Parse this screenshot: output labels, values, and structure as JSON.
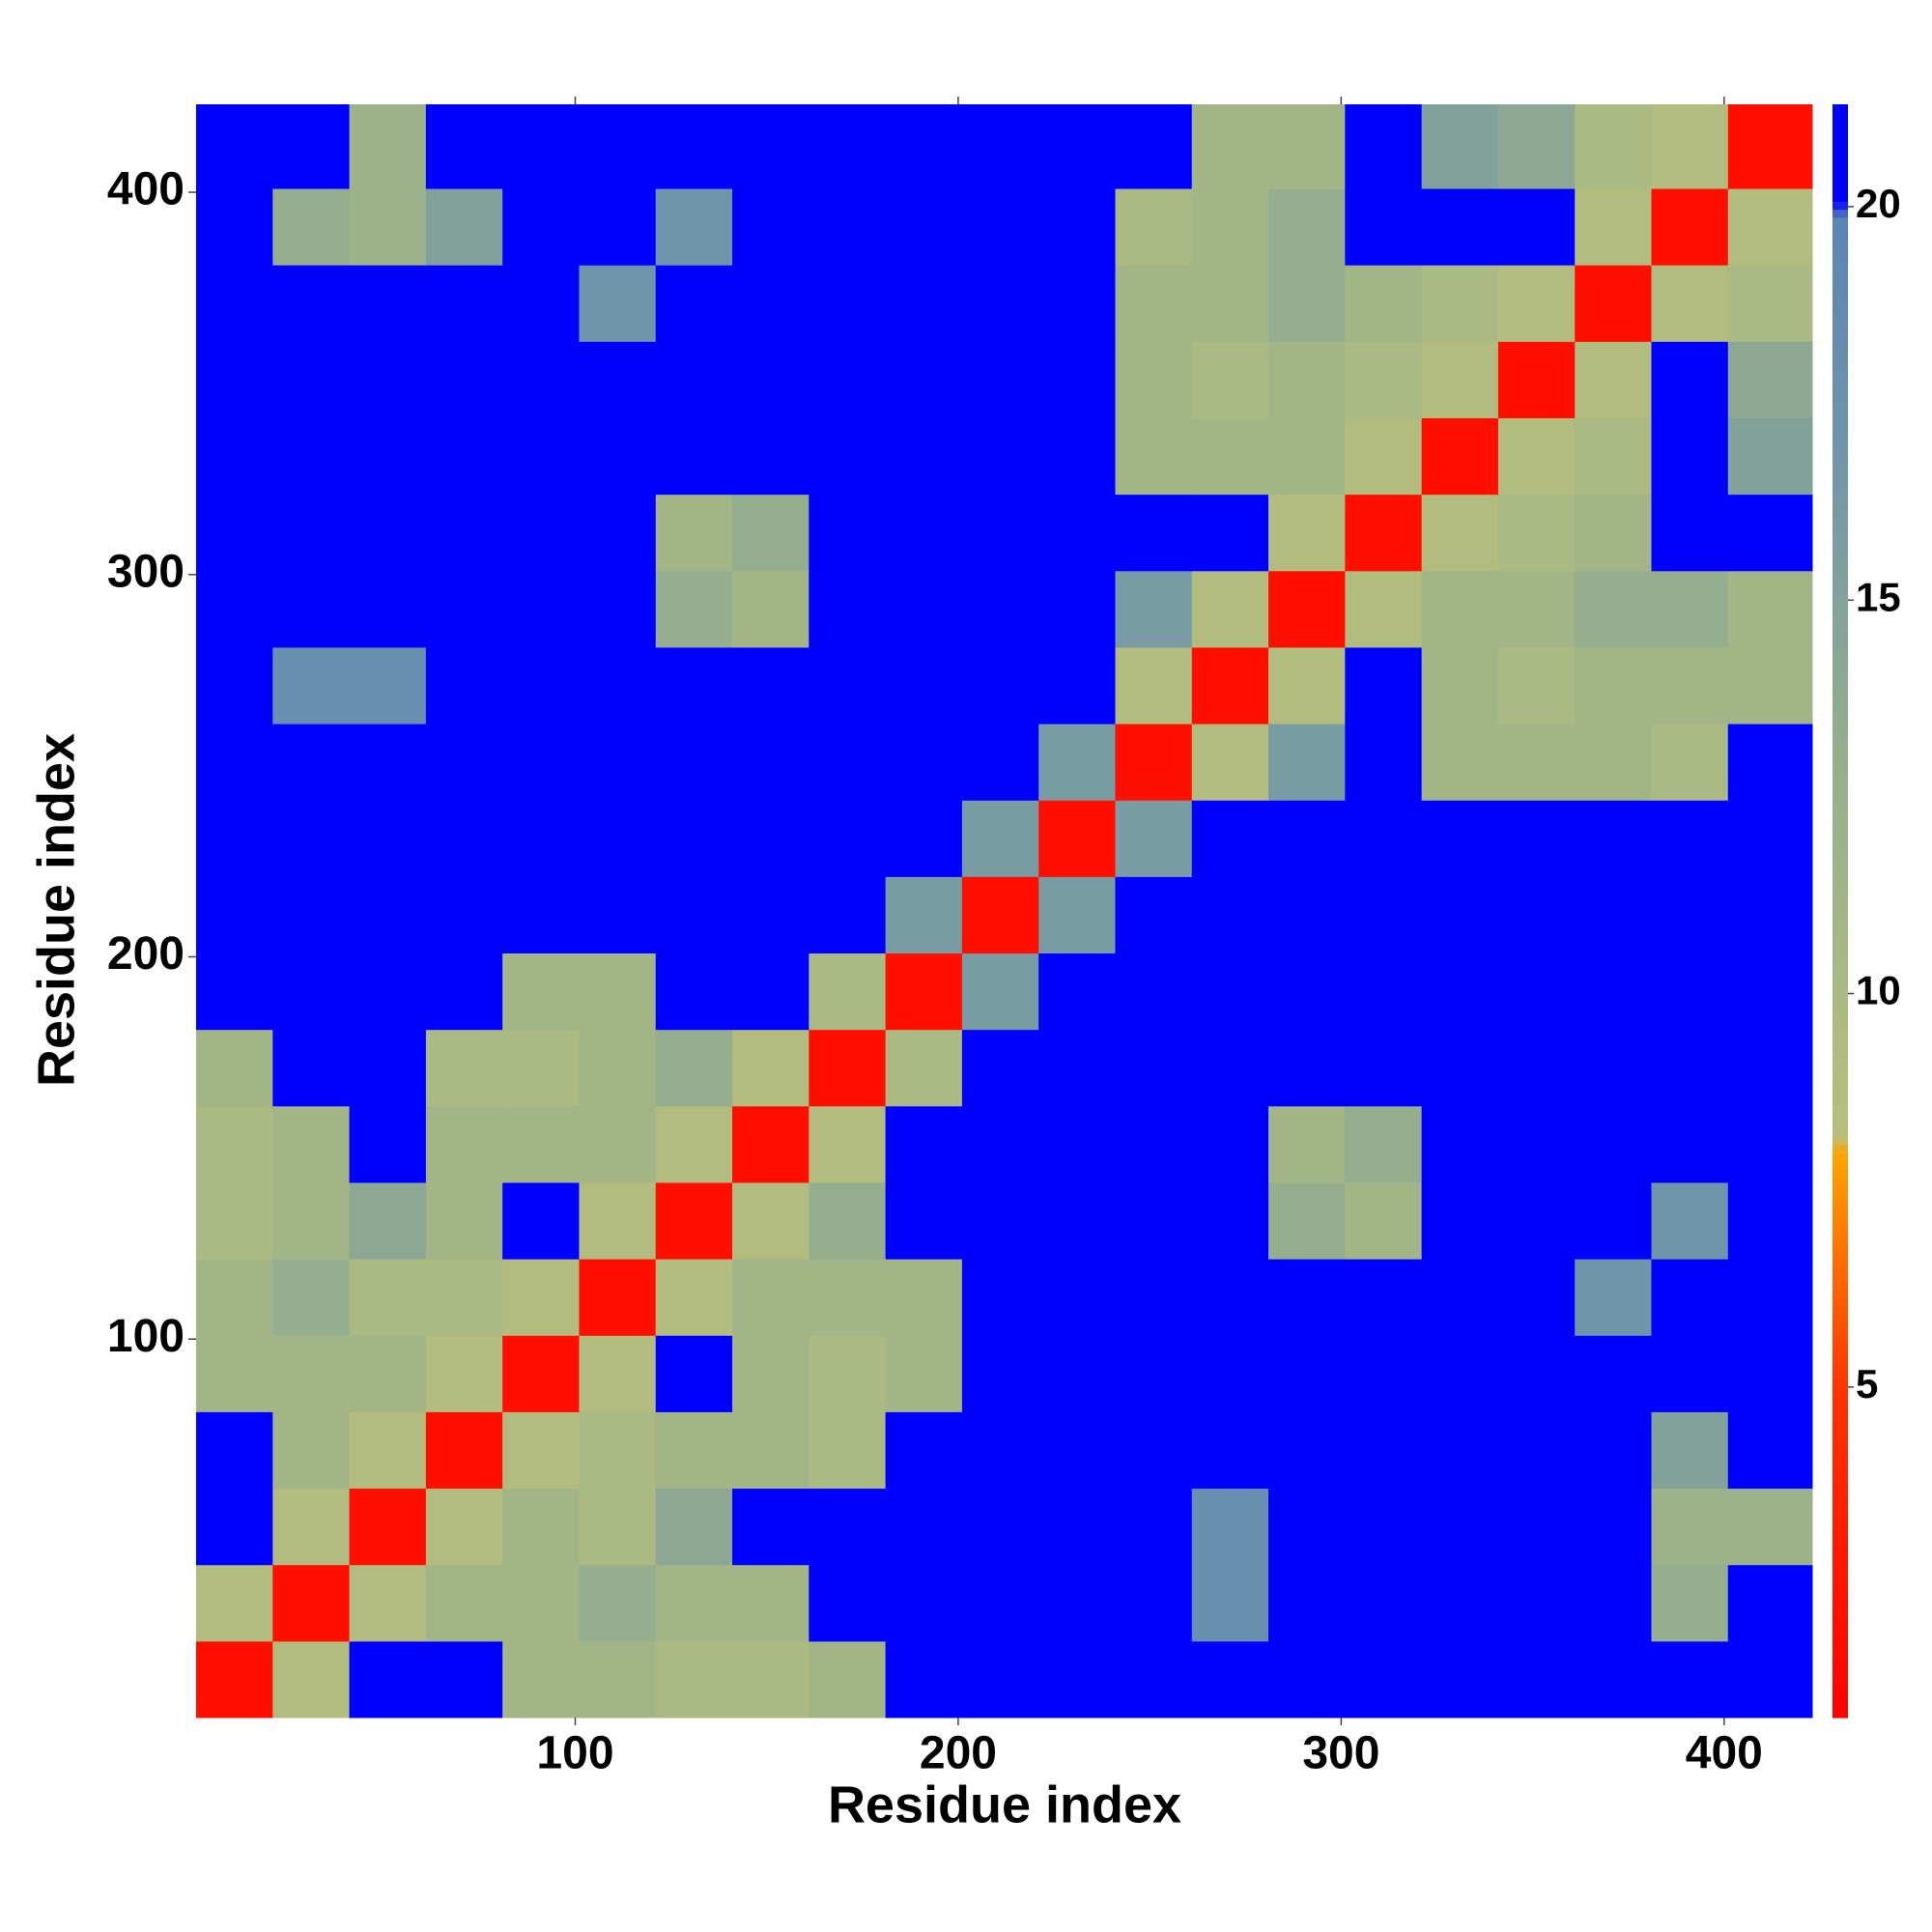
{
  "chart_data": {
    "type": "heatmap",
    "x_title": "Residue index",
    "y_title": "Residue index",
    "xlim": [
      1,
      423
    ],
    "ylim": [
      1,
      423
    ],
    "xticks": [
      100,
      200,
      300,
      400
    ],
    "yticks": [
      100,
      200,
      300,
      400
    ],
    "x_edges": [
      1,
      21,
      41,
      61,
      81,
      101,
      121,
      141,
      161,
      181,
      201,
      221,
      241,
      261,
      281,
      301,
      321,
      341,
      361,
      381,
      401,
      423
    ],
    "y_edges": [
      1,
      21,
      41,
      61,
      81,
      101,
      121,
      141,
      161,
      181,
      201,
      221,
      241,
      261,
      281,
      301,
      321,
      341,
      361,
      381,
      401,
      423
    ],
    "zlim": [
      0.8,
      21.3
    ],
    "zticks": [
      5,
      10,
      15,
      20
    ],
    "colorscale": [
      [
        0,
        "#ff0000"
      ],
      [
        0.2,
        "#ff3300"
      ],
      [
        0.28,
        "#ff6a00"
      ],
      [
        0.35,
        "#ffa500"
      ],
      [
        0.36,
        "#b8bf7c"
      ],
      [
        0.6,
        "#94ae8e"
      ],
      [
        0.8,
        "#6e93ab"
      ],
      [
        0.93,
        "#5b85b5"
      ],
      [
        0.94,
        "#0000ff"
      ],
      [
        1,
        "#0000ff"
      ]
    ],
    "z": [
      [
        2,
        9,
        21,
        21,
        11,
        11,
        10,
        10,
        11,
        21,
        21,
        21,
        21,
        21,
        21,
        21,
        21,
        21,
        21,
        21,
        21
      ],
      [
        9,
        2,
        9,
        11,
        11,
        13,
        11,
        11,
        21,
        21,
        21,
        21,
        21,
        18,
        21,
        21,
        21,
        21,
        21,
        13,
        21
      ],
      [
        21,
        9,
        2,
        9,
        11,
        10,
        14,
        21,
        21,
        21,
        21,
        21,
        21,
        18,
        21,
        21,
        21,
        21,
        21,
        12,
        12
      ],
      [
        21,
        11,
        9,
        2,
        9,
        10,
        11,
        11,
        10,
        21,
        21,
        21,
        21,
        21,
        21,
        21,
        21,
        21,
        21,
        15,
        21
      ],
      [
        11,
        11,
        11,
        9,
        2,
        9,
        21,
        11,
        10,
        11,
        21,
        21,
        21,
        21,
        21,
        21,
        21,
        21,
        21,
        21,
        21
      ],
      [
        11,
        13,
        10,
        10,
        9,
        2,
        9,
        11,
        11,
        11,
        21,
        21,
        21,
        21,
        21,
        21,
        21,
        21,
        17,
        21,
        21
      ],
      [
        10,
        11,
        14,
        11,
        21,
        9,
        2,
        9,
        13,
        21,
        21,
        21,
        21,
        21,
        13,
        11,
        21,
        21,
        21,
        17,
        21
      ],
      [
        10,
        11,
        21,
        11,
        11,
        11,
        9,
        2,
        9,
        21,
        21,
        21,
        21,
        21,
        11,
        13,
        21,
        21,
        21,
        21,
        21
      ],
      [
        11,
        21,
        21,
        10,
        10,
        11,
        13,
        9,
        2,
        10,
        21,
        21,
        21,
        21,
        21,
        21,
        21,
        21,
        21,
        21,
        21
      ],
      [
        21,
        21,
        21,
        21,
        11,
        11,
        21,
        21,
        10,
        2,
        16,
        21,
        21,
        21,
        21,
        21,
        21,
        21,
        21,
        21,
        21
      ],
      [
        21,
        21,
        21,
        21,
        21,
        21,
        21,
        21,
        21,
        16,
        2,
        16,
        21,
        21,
        21,
        21,
        21,
        21,
        21,
        21,
        21
      ],
      [
        21,
        21,
        21,
        21,
        21,
        21,
        21,
        21,
        21,
        21,
        16,
        2,
        16,
        21,
        21,
        21,
        21,
        21,
        21,
        21,
        21
      ],
      [
        21,
        21,
        21,
        21,
        21,
        21,
        21,
        21,
        21,
        21,
        21,
        16,
        2,
        9,
        16,
        21,
        11,
        11,
        11,
        10,
        21
      ],
      [
        21,
        18,
        18,
        21,
        21,
        21,
        21,
        21,
        21,
        21,
        21,
        21,
        9,
        2,
        9,
        21,
        11,
        10,
        11,
        11,
        11
      ],
      [
        21,
        21,
        21,
        21,
        21,
        21,
        13,
        11,
        21,
        21,
        21,
        21,
        16,
        9,
        2,
        9,
        11,
        11,
        13,
        13,
        11
      ],
      [
        21,
        21,
        21,
        21,
        21,
        21,
        11,
        13,
        21,
        21,
        21,
        21,
        21,
        21,
        9,
        2,
        9,
        10,
        11,
        21,
        21
      ],
      [
        21,
        21,
        21,
        21,
        21,
        21,
        21,
        21,
        21,
        21,
        21,
        21,
        11,
        11,
        11,
        9,
        2,
        9,
        10,
        21,
        15
      ],
      [
        21,
        21,
        21,
        21,
        21,
        21,
        21,
        21,
        21,
        21,
        21,
        21,
        11,
        10,
        11,
        10,
        9,
        2,
        9,
        21,
        14
      ],
      [
        21,
        21,
        21,
        21,
        21,
        17,
        21,
        21,
        21,
        21,
        21,
        21,
        11,
        11,
        13,
        11,
        10,
        9,
        2,
        9,
        10
      ],
      [
        21,
        13,
        12,
        15,
        21,
        21,
        17,
        21,
        21,
        21,
        21,
        21,
        10,
        11,
        13,
        21,
        21,
        21,
        9,
        2,
        9
      ],
      [
        21,
        21,
        12,
        21,
        21,
        21,
        21,
        21,
        21,
        21,
        21,
        21,
        21,
        11,
        11,
        21,
        15,
        14,
        10,
        9,
        2
      ]
    ]
  }
}
